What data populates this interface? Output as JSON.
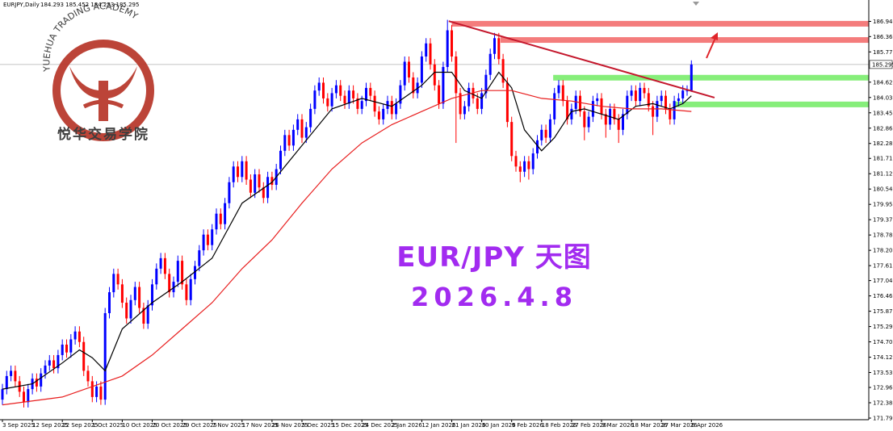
{
  "header": {
    "symbol": "EURJPY,Daily",
    "ohlc": "184.293 185.452 184.253 185.295"
  },
  "watermark": {
    "name": "YUEHUA TRADING ACADEMY",
    "name_cn": "悦华交易学院"
  },
  "chart_data": {
    "type": "candlestick",
    "title": "EUR/JPY 天图",
    "subtitle": "2026.4.8",
    "up_color": "#0000ff",
    "down_color": "#ff0000",
    "open": [
      172.5,
      172.9,
      173.4,
      173.6,
      173.2,
      172.8,
      172.4,
      172.9,
      173.3,
      173.0,
      173.5,
      173.8,
      174.0,
      173.7,
      174.2,
      174.6,
      174.3,
      174.8,
      175.1,
      174.7,
      173.6,
      173.2,
      172.6,
      173.0,
      172.5,
      175.8,
      176.6,
      177.3,
      176.9,
      176.2,
      175.6,
      176.3,
      176.8,
      176.0,
      175.4,
      176.1,
      176.9,
      177.5,
      177.9,
      177.3,
      176.6,
      177.0,
      177.8,
      176.9,
      176.3,
      177.1,
      177.6,
      178.2,
      178.8,
      178.4,
      179.0,
      179.6,
      179.2,
      180.0,
      180.8,
      181.4,
      181.0,
      181.6,
      180.9,
      180.4,
      181.1,
      180.6,
      180.2,
      181.0,
      180.7,
      181.3,
      182.0,
      182.6,
      182.2,
      182.8,
      183.2,
      182.5,
      182.9,
      183.6,
      184.3,
      184.6,
      184.0,
      183.7,
      184.2,
      184.5,
      184.1,
      183.8,
      184.3,
      184.0,
      183.6,
      183.9,
      184.4,
      184.1,
      183.5,
      183.2,
      183.6,
      183.9,
      183.4,
      183.8,
      184.5,
      185.4,
      184.8,
      184.2,
      184.6,
      185.6,
      186.1,
      185.3,
      184.5,
      183.8,
      185.2,
      186.6,
      185.6,
      184.2,
      183.4,
      183.7,
      184.4,
      184.0,
      183.6,
      184.2,
      184.9,
      185.7,
      186.3,
      185.5,
      184.6,
      183.1,
      181.8,
      181.4,
      181.2,
      181.6,
      181.3,
      181.9,
      182.4,
      182.8,
      182.5,
      183.2,
      184.2,
      184.5,
      183.9,
      183.2,
      183.6,
      184.1,
      183.5,
      182.9,
      183.3,
      183.9,
      184.0,
      183.4,
      183.0,
      183.6,
      183.2,
      182.8,
      183.4,
      184.1,
      184.3,
      183.9,
      184.4,
      184.2,
      183.7,
      183.3,
      183.9,
      184.1,
      183.6,
      183.2,
      183.9,
      184.0,
      184.3,
      184.293
    ],
    "high": [
      173.1,
      173.6,
      173.8,
      173.8,
      173.4,
      173.0,
      173.1,
      173.5,
      173.5,
      173.7,
      174.0,
      174.2,
      174.2,
      174.4,
      174.8,
      174.8,
      175.0,
      175.3,
      175.3,
      174.9,
      173.8,
      173.4,
      173.2,
      173.2,
      176.0,
      176.8,
      177.5,
      177.5,
      177.1,
      176.4,
      176.5,
      177.0,
      177.0,
      176.2,
      176.3,
      177.1,
      177.7,
      178.1,
      178.1,
      177.5,
      177.2,
      178.0,
      178.0,
      177.1,
      177.3,
      177.8,
      178.4,
      179.0,
      179.0,
      179.2,
      179.8,
      179.8,
      180.2,
      181.0,
      181.6,
      181.6,
      181.8,
      181.8,
      181.1,
      181.3,
      181.3,
      180.8,
      181.2,
      181.2,
      181.5,
      182.2,
      182.8,
      182.8,
      183.0,
      183.4,
      183.4,
      183.1,
      183.8,
      184.5,
      184.8,
      184.8,
      184.2,
      184.4,
      184.7,
      184.7,
      184.3,
      184.5,
      184.5,
      184.2,
      184.1,
      184.6,
      184.6,
      184.3,
      183.7,
      183.8,
      184.1,
      184.1,
      184.0,
      184.7,
      185.6,
      185.6,
      185.0,
      184.8,
      185.8,
      186.3,
      186.3,
      185.5,
      184.7,
      185.4,
      187.0,
      186.8,
      185.8,
      184.4,
      183.9,
      184.6,
      184.6,
      184.2,
      184.4,
      185.1,
      185.9,
      186.5,
      186.5,
      185.7,
      184.8,
      183.3,
      182.0,
      181.6,
      181.8,
      181.8,
      182.1,
      182.6,
      183.0,
      183.0,
      183.4,
      184.4,
      184.7,
      184.7,
      184.1,
      183.8,
      184.3,
      184.3,
      183.7,
      183.5,
      184.1,
      184.2,
      184.2,
      183.6,
      183.8,
      183.8,
      183.4,
      183.6,
      184.3,
      184.5,
      184.5,
      184.6,
      184.6,
      184.4,
      183.9,
      184.1,
      184.3,
      184.3,
      183.8,
      184.1,
      184.2,
      184.5,
      184.5,
      185.452
    ],
    "low": [
      172.3,
      172.7,
      173.2,
      173.0,
      172.6,
      172.2,
      172.2,
      172.7,
      172.8,
      172.8,
      173.3,
      173.6,
      173.5,
      173.5,
      174.0,
      174.1,
      174.1,
      174.6,
      174.5,
      173.4,
      173.0,
      172.4,
      172.4,
      172.3,
      172.3,
      175.6,
      176.4,
      176.7,
      176.0,
      175.4,
      175.4,
      176.1,
      175.8,
      175.2,
      175.2,
      175.9,
      176.7,
      177.3,
      177.1,
      176.4,
      176.4,
      176.8,
      176.7,
      176.1,
      176.1,
      176.9,
      177.4,
      178.0,
      178.2,
      178.2,
      178.8,
      179.0,
      179.0,
      179.8,
      180.6,
      180.8,
      180.8,
      180.7,
      180.2,
      180.2,
      180.4,
      180.0,
      180.0,
      180.5,
      180.5,
      181.1,
      181.8,
      182.0,
      182.0,
      182.6,
      182.3,
      182.3,
      182.7,
      183.4,
      184.1,
      183.8,
      183.5,
      183.5,
      184.0,
      183.9,
      183.6,
      183.6,
      183.8,
      183.4,
      183.4,
      183.7,
      183.9,
      183.3,
      183.0,
      183.0,
      183.4,
      183.2,
      183.2,
      183.6,
      184.3,
      184.6,
      184.0,
      184.0,
      184.4,
      185.4,
      185.1,
      184.3,
      183.6,
      183.6,
      185.0,
      185.4,
      182.3,
      183.2,
      183.2,
      183.5,
      183.8,
      183.4,
      183.4,
      184.0,
      184.7,
      185.5,
      185.3,
      184.4,
      182.9,
      181.6,
      181.2,
      180.8,
      181.0,
      180.9,
      181.1,
      181.7,
      182.2,
      182.3,
      182.3,
      183.0,
      184.0,
      183.7,
      183.0,
      183.0,
      183.4,
      183.3,
      182.4,
      182.7,
      183.1,
      183.7,
      183.2,
      182.5,
      182.8,
      183.0,
      182.3,
      182.6,
      183.2,
      183.9,
      183.7,
      183.7,
      184.0,
      183.5,
      182.6,
      183.1,
      183.7,
      183.4,
      183.0,
      183.0,
      183.7,
      183.8,
      184.1,
      184.253
    ],
    "close": [
      172.9,
      173.4,
      173.6,
      173.2,
      172.8,
      172.4,
      172.9,
      173.3,
      173.0,
      173.5,
      173.8,
      174.0,
      173.7,
      174.2,
      174.6,
      174.3,
      174.8,
      175.1,
      174.7,
      173.6,
      173.2,
      172.6,
      173.0,
      172.5,
      175.8,
      176.6,
      177.3,
      176.9,
      176.2,
      175.6,
      176.3,
      176.8,
      176.0,
      175.4,
      176.1,
      176.9,
      177.5,
      177.9,
      177.3,
      176.6,
      177.0,
      177.8,
      176.9,
      176.3,
      177.1,
      177.6,
      178.2,
      178.8,
      178.4,
      179.0,
      179.6,
      179.2,
      180.0,
      180.8,
      181.4,
      181.0,
      181.6,
      180.9,
      180.4,
      181.1,
      180.6,
      180.2,
      181.0,
      180.7,
      181.3,
      182.0,
      182.6,
      182.2,
      182.8,
      183.2,
      182.5,
      182.9,
      183.6,
      184.3,
      184.6,
      184.0,
      183.7,
      184.2,
      184.5,
      184.1,
      183.8,
      184.3,
      184.0,
      183.6,
      183.9,
      184.4,
      184.1,
      183.5,
      183.2,
      183.6,
      183.9,
      183.4,
      183.8,
      184.5,
      185.4,
      184.8,
      184.2,
      184.6,
      185.6,
      186.1,
      185.3,
      184.5,
      183.8,
      185.2,
      186.6,
      185.6,
      184.2,
      183.4,
      183.7,
      184.4,
      184.0,
      183.6,
      184.2,
      184.9,
      185.7,
      186.3,
      185.5,
      184.6,
      183.1,
      181.8,
      181.4,
      181.2,
      181.6,
      181.3,
      181.9,
      182.4,
      182.8,
      182.5,
      183.2,
      184.2,
      184.5,
      183.9,
      183.2,
      183.6,
      184.1,
      183.5,
      182.9,
      183.3,
      183.9,
      184.0,
      183.4,
      183.0,
      183.6,
      183.2,
      182.8,
      183.4,
      184.1,
      184.3,
      183.9,
      184.4,
      184.2,
      183.7,
      183.3,
      183.9,
      184.1,
      183.6,
      183.2,
      183.9,
      184.0,
      184.3,
      184.3,
      185.295
    ],
    "ylim": [
      171.733,
      187.757
    ],
    "yticks": [
      {
        "value": 186.94,
        "label": "186.940"
      },
      {
        "value": 186.36,
        "label": "186.360"
      },
      185.775,
      {
        "value": 184.62,
        "label": "184.620"
      },
      184.035,
      {
        "value": 183.45,
        "label": "183.450"
      },
      182.865,
      {
        "value": 182.28,
        "label": "182.280"
      },
      {
        "value": 181.71,
        "label": "181.710"
      },
      181.125,
      {
        "value": 180.54,
        "label": "180.540"
      },
      179.955,
      {
        "value": 179.37,
        "label": "179.370"
      },
      178.785,
      {
        "value": 178.2,
        "label": "178.200"
      },
      177.615,
      177.045,
      {
        "value": 176.46,
        "label": "176.460"
      },
      175.875,
      {
        "value": 175.29,
        "label": "175.290"
      },
      174.705,
      {
        "value": 174.12,
        "label": "174.120"
      },
      173.535,
      172.965,
      {
        "value": 172.38,
        "label": "172.380"
      },
      171.795
    ],
    "xticks": [
      {
        "value": 0,
        "label": "3 Sep 2025"
      },
      {
        "value": 7,
        "label": "12 Sep 2025"
      },
      {
        "value": 14,
        "label": "22 Sep 2025"
      },
      {
        "value": 21,
        "label": "1 Oct 2025"
      },
      {
        "value": 28,
        "label": "10 Oct 2025"
      },
      {
        "value": 35,
        "label": "20 Oct 2025"
      },
      {
        "value": 42,
        "label": "29 Oct 2025"
      },
      {
        "value": 49,
        "label": "7 Nov 2025"
      },
      {
        "value": 56,
        "label": "17 Nov 2025"
      },
      {
        "value": 63,
        "label": "26 Nov 2025"
      },
      {
        "value": 70,
        "label": "5 Dec 2025"
      },
      {
        "value": 77,
        "label": "15 Dec 2025"
      },
      {
        "value": 84,
        "label": "24 Dec 2025"
      },
      {
        "value": 91,
        "label": "2 Jan 2026"
      },
      {
        "value": 98,
        "label": "12 Jan 2026"
      },
      {
        "value": 105,
        "label": "21 Jan 2026"
      },
      {
        "value": 112,
        "label": "30 Jan 2026"
      },
      {
        "value": 119,
        "label": "9 Feb 2026"
      },
      {
        "value": 126,
        "label": "18 Feb 2026"
      },
      {
        "value": 133,
        "label": "27 Feb 2026"
      },
      {
        "value": 140,
        "label": "9 Mar 2026"
      },
      {
        "value": 147,
        "label": "18 Mar 2026"
      },
      {
        "value": 154,
        "label": "27 Mar 2026"
      },
      {
        "value": 161,
        "label": "6 Apr 2026"
      }
    ],
    "last_price": 185.295,
    "moving_averages": [
      {
        "color": "#000000",
        "x": [
          0,
          7,
          14,
          18,
          21,
          24,
          28,
          35,
          42,
          49,
          56,
          63,
          70,
          77,
          84,
          91,
          98,
          101,
          105,
          108,
          112,
          116,
          119,
          122,
          126,
          129,
          133,
          136,
          140,
          144,
          148,
          152,
          156,
          159,
          161
        ],
        "values": [
          172.9,
          173.1,
          173.9,
          174.4,
          174.1,
          173.6,
          175.2,
          176.2,
          177.0,
          177.9,
          180.0,
          180.8,
          182.2,
          183.6,
          184.0,
          183.7,
          184.5,
          185.0,
          185.0,
          184.3,
          184.0,
          185.0,
          184.4,
          182.8,
          182.0,
          182.5,
          183.5,
          183.6,
          183.4,
          183.2,
          183.7,
          183.8,
          183.6,
          183.8,
          184.1
        ]
      },
      {
        "color": "#e81e1e",
        "x": [
          0,
          14,
          21,
          28,
          35,
          42,
          49,
          56,
          63,
          70,
          77,
          84,
          91,
          98,
          105,
          112,
          119,
          126,
          133,
          140,
          147,
          154,
          161
        ],
        "values": [
          172.3,
          172.6,
          173.0,
          173.4,
          174.2,
          175.2,
          176.2,
          177.5,
          178.6,
          180.0,
          181.3,
          182.3,
          183.0,
          183.5,
          184.0,
          184.3,
          184.3,
          184.0,
          183.9,
          183.7,
          183.6,
          183.6,
          183.5
        ]
      }
    ],
    "zones": [
      {
        "color": "#f47c7c",
        "value": 186.85,
        "start": 105
      },
      {
        "color": "#f47c7c",
        "value": 186.23,
        "start": 116.4
      },
      {
        "color": "#86ee7a",
        "value": 184.79,
        "start": 128.7
      },
      {
        "color": "#86ee7a",
        "value": 183.77,
        "start": 157
      }
    ],
    "trendline": {
      "color": "#c4172c",
      "x": [
        104.3,
        166.4
      ],
      "values": [
        186.95,
        184.03
      ]
    }
  }
}
